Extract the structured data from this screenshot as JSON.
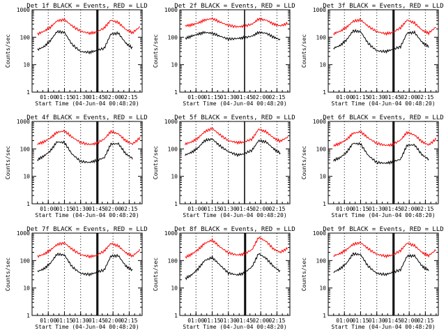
{
  "chart_data": {
    "type": "line",
    "x_ticks": [
      "01:00",
      "01:15",
      "01:30",
      "01:45",
      "02:00",
      "02:15"
    ],
    "x_tick_minutes": [
      60,
      75,
      90,
      105,
      120,
      135
    ],
    "xlim_minutes": [
      45,
      147
    ],
    "ylim": [
      1,
      1000
    ],
    "y_ticks": [
      "1",
      "10",
      "100",
      "1000"
    ],
    "y_tick_values": [
      1,
      10,
      100,
      1000
    ],
    "xlabel": "Start Time (04-Jun-04 00:48:20)",
    "ylabel": "Counts/sec",
    "series_names": [
      "Events",
      "LLD"
    ],
    "series_colors": {
      "Events": "#000000",
      "LLD": "#ff0000"
    },
    "panels": [
      {
        "title": "Det 1f BLACK = Events, RED = LLD",
        "marker_minutes": [
          105,
          106
        ],
        "x": [
          50,
          56,
          62,
          68,
          75,
          82,
          90,
          98,
          104,
          112,
          118,
          125,
          132,
          138,
          145
        ],
        "lld": [
          130,
          165,
          230,
          390,
          440,
          260,
          165,
          140,
          150,
          220,
          420,
          340,
          190,
          145,
          240
        ],
        "events": [
          35,
          45,
          75,
          160,
          150,
          55,
          30,
          28,
          32,
          40,
          130,
          140,
          60,
          40,
          null
        ]
      },
      {
        "title": "Det 2f BLACK = Events, RED = LLD",
        "marker_minutes": [
          105
        ],
        "x": [
          50,
          56,
          62,
          68,
          75,
          82,
          90,
          98,
          104,
          112,
          118,
          125,
          132,
          138,
          145
        ],
        "lld": [
          260,
          280,
          330,
          420,
          480,
          360,
          270,
          240,
          250,
          300,
          460,
          420,
          300,
          260,
          320
        ],
        "events": [
          90,
          110,
          130,
          150,
          140,
          110,
          85,
          90,
          95,
          110,
          150,
          140,
          100,
          80,
          null
        ]
      },
      {
        "title": "Det 3f BLACK = Events, RED = LLD",
        "marker_minutes": [
          105,
          106
        ],
        "x": [
          50,
          56,
          62,
          68,
          75,
          82,
          90,
          98,
          104,
          112,
          118,
          125,
          132,
          138,
          145
        ],
        "lld": [
          135,
          165,
          230,
          380,
          430,
          250,
          160,
          135,
          145,
          220,
          420,
          330,
          180,
          140,
          240
        ],
        "events": [
          40,
          50,
          80,
          170,
          160,
          60,
          32,
          30,
          35,
          45,
          140,
          150,
          65,
          45,
          null
        ]
      },
      {
        "title": "Det 4f BLACK = Events, RED = LLD",
        "marker_minutes": [
          105,
          106
        ],
        "x": [
          50,
          56,
          62,
          68,
          75,
          82,
          90,
          98,
          104,
          112,
          118,
          125,
          132,
          138,
          145
        ],
        "lld": [
          150,
          180,
          250,
          400,
          450,
          270,
          170,
          145,
          155,
          230,
          430,
          350,
          195,
          150,
          250
        ],
        "events": [
          40,
          55,
          85,
          180,
          170,
          65,
          35,
          32,
          37,
          48,
          150,
          155,
          65,
          45,
          null
        ]
      },
      {
        "title": "Det 5f BLACK = Events, RED = LLD",
        "marker_minutes": [
          105
        ],
        "x": [
          50,
          56,
          62,
          68,
          75,
          82,
          90,
          98,
          104,
          112,
          118,
          125,
          132,
          138,
          145
        ],
        "lld": [
          150,
          180,
          250,
          420,
          560,
          330,
          200,
          170,
          175,
          230,
          520,
          420,
          250,
          190,
          270
        ],
        "events": [
          60,
          75,
          110,
          200,
          230,
          130,
          80,
          60,
          65,
          90,
          200,
          180,
          100,
          70,
          null
        ]
      },
      {
        "title": "Det 6f BLACK = Events, RED = LLD",
        "marker_minutes": [
          105,
          106
        ],
        "x": [
          50,
          56,
          62,
          68,
          75,
          82,
          90,
          98,
          104,
          112,
          118,
          125,
          132,
          138,
          145
        ],
        "lld": [
          130,
          160,
          220,
          370,
          420,
          250,
          160,
          135,
          140,
          210,
          400,
          320,
          180,
          140,
          230
        ],
        "events": [
          38,
          48,
          75,
          160,
          150,
          58,
          32,
          30,
          33,
          42,
          135,
          140,
          60,
          42,
          null
        ]
      },
      {
        "title": "Det 7f BLACK = Events, RED = LLD",
        "marker_minutes": [
          105,
          106
        ],
        "x": [
          50,
          56,
          62,
          68,
          75,
          82,
          90,
          98,
          104,
          112,
          118,
          125,
          132,
          138,
          145
        ],
        "lld": [
          140,
          170,
          240,
          380,
          440,
          260,
          165,
          140,
          150,
          225,
          420,
          340,
          190,
          145,
          245
        ],
        "events": [
          40,
          50,
          80,
          170,
          160,
          60,
          34,
          31,
          36,
          46,
          145,
          150,
          62,
          44,
          null
        ]
      },
      {
        "title": "Det 8f BLACK = Events, RED = LLD",
        "marker_minutes": [
          105,
          106
        ],
        "x": [
          50,
          56,
          62,
          68,
          75,
          82,
          90,
          98,
          104,
          112,
          118,
          125,
          132,
          138,
          145
        ],
        "lld": [
          130,
          170,
          250,
          420,
          560,
          320,
          190,
          160,
          170,
          250,
          700,
          500,
          260,
          200,
          280
        ],
        "events": [
          22,
          30,
          50,
          100,
          130,
          70,
          35,
          30,
          34,
          60,
          180,
          120,
          60,
          40,
          null
        ]
      },
      {
        "title": "Det 9f BLACK = Events, RED = LLD",
        "marker_minutes": [
          105,
          106
        ],
        "x": [
          50,
          56,
          62,
          68,
          75,
          82,
          90,
          98,
          104,
          112,
          118,
          125,
          132,
          138,
          145
        ],
        "lld": [
          150,
          180,
          250,
          390,
          450,
          270,
          170,
          145,
          155,
          230,
          430,
          350,
          195,
          150,
          250
        ],
        "events": [
          38,
          50,
          80,
          175,
          165,
          62,
          34,
          31,
          36,
          46,
          145,
          150,
          62,
          44,
          null
        ]
      }
    ]
  }
}
